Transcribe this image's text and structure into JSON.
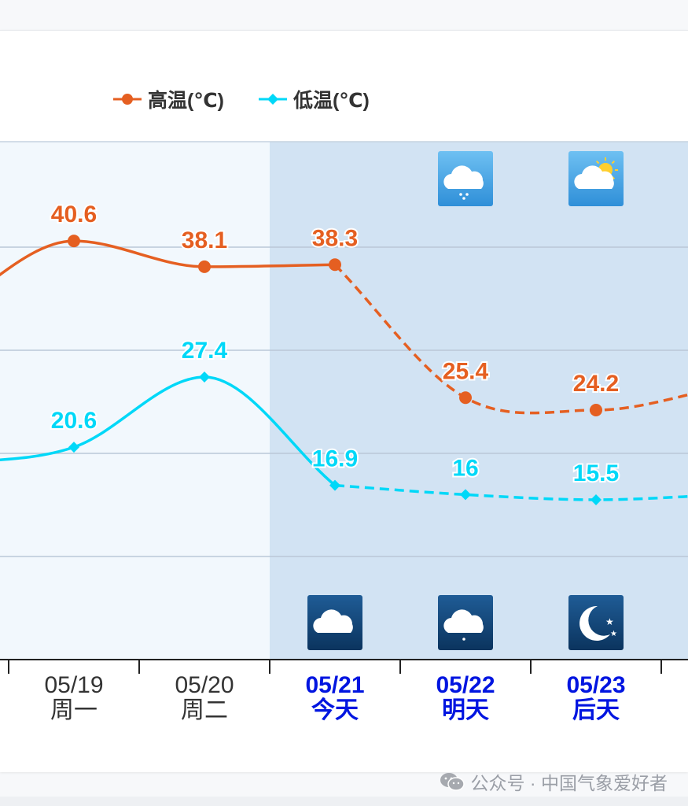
{
  "colors": {
    "high": "#e55f21",
    "low": "#00d8f8",
    "future_date": "#0015e0",
    "past_date": "#333333",
    "past_bg": "#f2f8fd",
    "future_bg": "#d2e3f3",
    "icon_day": "#3d9be0",
    "icon_night": "#103f70"
  },
  "legend": [
    {
      "label": "高温(℃)",
      "series": "high",
      "marker": "circle"
    },
    {
      "label": "低温(℃)",
      "series": "low",
      "marker": "diamond"
    }
  ],
  "chart_data": {
    "type": "line",
    "categories": [
      "05/19",
      "05/20",
      "05/21",
      "05/22",
      "05/23"
    ],
    "weekdays": [
      "周一",
      "周二",
      "今天",
      "明天",
      "后天"
    ],
    "today_index": 2,
    "series": [
      {
        "name": "高温(℃)",
        "key": "high",
        "values": [
          40.6,
          38.1,
          38.3,
          25.4,
          24.2
        ],
        "value_labels": [
          "40.6",
          "38.1",
          "38.3",
          "25.4",
          "24.2"
        ]
      },
      {
        "name": "低温(℃)",
        "key": "low",
        "values": [
          20.6,
          27.4,
          16.9,
          16,
          15.5
        ],
        "value_labels": [
          "20.6",
          "27.4",
          "16.9",
          "16",
          "15.5"
        ]
      }
    ],
    "dashed_from_index": 2,
    "grid": true,
    "legend_position": "top"
  },
  "weather_icons": {
    "day": [
      {
        "index": 3,
        "icon": "cloud-rain-icon"
      },
      {
        "index": 4,
        "icon": "partly-cloudy-sun-icon"
      }
    ],
    "night": [
      {
        "index": 2,
        "icon": "cloud-icon"
      },
      {
        "index": 3,
        "icon": "cloud-drizzle-icon"
      },
      {
        "index": 4,
        "icon": "moon-stars-icon"
      }
    ]
  },
  "watermark": {
    "text": "公众号 · 中国气象爱好者",
    "icon": "wechat-icon"
  }
}
